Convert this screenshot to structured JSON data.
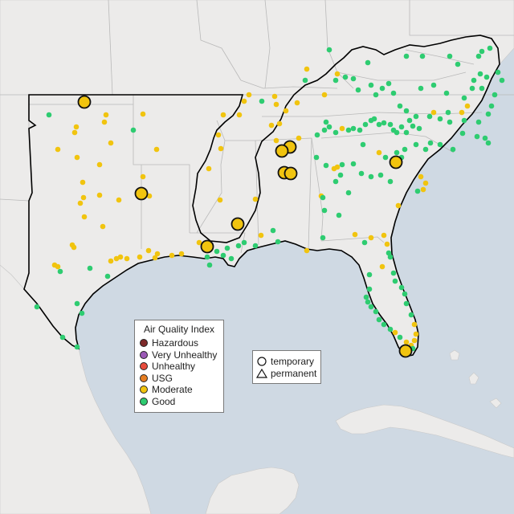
{
  "map": {
    "colors": {
      "water": "#cfd9e3",
      "land": "#ecebea",
      "state_line": "#b9b9b9",
      "region_outline": "#000000"
    }
  },
  "legend_aqi": {
    "title": "Air Quality Index",
    "items": [
      {
        "label": "Hazardous",
        "color": "#7e2a2a"
      },
      {
        "label": "Very Unhealthy",
        "color": "#9b59b6"
      },
      {
        "label": "Unhealthy",
        "color": "#e74c3c"
      },
      {
        "label": "USG",
        "color": "#e67e22"
      },
      {
        "label": "Moderate",
        "color": "#f1c40f"
      },
      {
        "label": "Good",
        "color": "#2ecc71"
      }
    ]
  },
  "legend_type": {
    "items": [
      {
        "label": "temporary",
        "shape": "circle-icon"
      },
      {
        "label": "permanent",
        "shape": "triangle-icon"
      }
    ]
  }
}
